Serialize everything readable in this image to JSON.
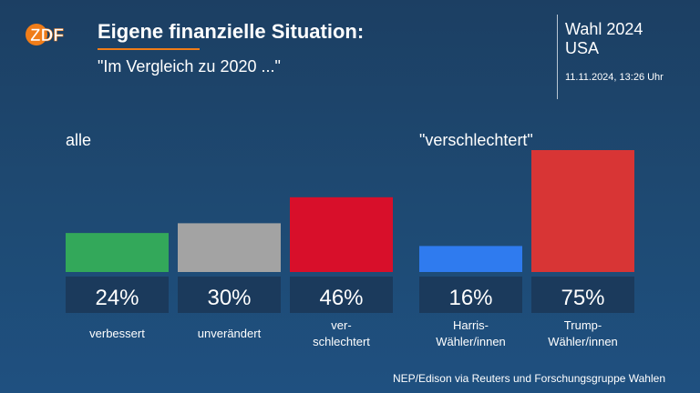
{
  "header": {
    "logo_text": "ZDF",
    "title": "Eigene finanzielle Situation:",
    "subtitle": "\"Im Vergleich zu 2020 ...\""
  },
  "side": {
    "title_line1": "Wahl 2024",
    "title_line2": "USA",
    "date": "11.11.2024, 13:26 Uhr"
  },
  "source": "NEP/Edison via Reuters und Forschungsgruppe Wahlen",
  "colors": {
    "background": "#1e4a73",
    "value_box": "#1b3a5c",
    "accent": "#f07d19"
  },
  "chart_data": [
    {
      "type": "bar",
      "title": "alle",
      "categories": [
        [
          "verbessert"
        ],
        [
          "unverändert"
        ],
        [
          "ver-",
          "schlechtert"
        ]
      ],
      "values": [
        24,
        30,
        46
      ],
      "value_labels": [
        "24%",
        "30%",
        "46%"
      ],
      "colors": [
        "#33a85a",
        "#a3a3a3",
        "#d80f2a"
      ],
      "ylim": [
        0,
        75
      ]
    },
    {
      "type": "bar",
      "title": "\"verschlechtert\"",
      "categories": [
        [
          "Harris-",
          "Wähler/innen"
        ],
        [
          "Trump-",
          "Wähler/innen"
        ]
      ],
      "values": [
        16,
        75
      ],
      "value_labels": [
        "16%",
        "75%"
      ],
      "colors": [
        "#2f7bef",
        "#d83535"
      ],
      "ylim": [
        0,
        75
      ]
    }
  ]
}
